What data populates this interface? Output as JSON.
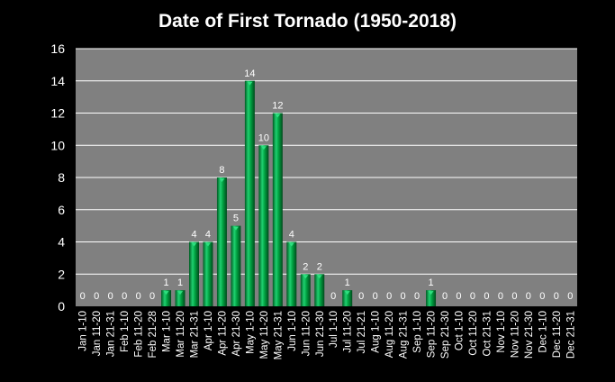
{
  "chart_data": {
    "type": "bar",
    "title": "Date of First Tornado (1950-2018)",
    "xlabel": "",
    "ylabel": "",
    "ylim": [
      0,
      16
    ],
    "yticks": [
      0,
      2,
      4,
      6,
      8,
      10,
      12,
      14,
      16
    ],
    "grid": true,
    "legend": "none",
    "data_labels": true,
    "colors": {
      "bar": "#00a040",
      "plot_background": "#808080",
      "background": "#000000",
      "grid": "#ffffff",
      "text": "#ffffff"
    },
    "categories": [
      "Jan 1-10",
      "Jan 11-20",
      "Jan 21-31",
      "Feb 1-10",
      "Feb 11-20",
      "Feb 21-28",
      "Mar 1-10",
      "Mar 11-20",
      "Mar 21-31",
      "Apr 1-10",
      "Apr 11-20",
      "Apr 21-30",
      "May 1-10",
      "May 11-20",
      "May 21-31",
      "Jun 1-10",
      "Jun 11-20",
      "Jun 21-30",
      "Jul 1-10",
      "Jul 11-20",
      "Jul 21-21",
      "Aug 1-10",
      "Aug 11-20",
      "Aug 21-31",
      "Sep 1-10",
      "Sep 11-20",
      "Sep 21-30",
      "Oct 1-10",
      "Oct 11-20",
      "Oct 21-31",
      "Nov 1-10",
      "Nov 11-20",
      "Nov 21-30",
      "Dec 1-10",
      "Dec 11-20",
      "Dec 21-31"
    ],
    "values": [
      0,
      0,
      0,
      0,
      0,
      0,
      1,
      1,
      4,
      4,
      8,
      5,
      14,
      10,
      12,
      4,
      2,
      2,
      0,
      1,
      0,
      0,
      0,
      0,
      0,
      1,
      0,
      0,
      0,
      0,
      0,
      0,
      0,
      0,
      0,
      0
    ]
  }
}
